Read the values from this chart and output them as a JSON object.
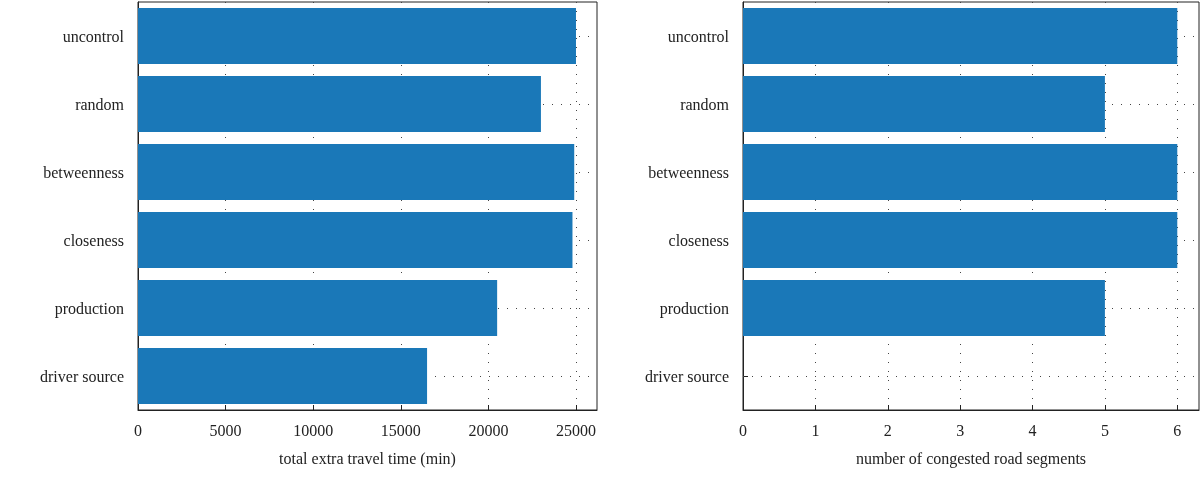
{
  "chart_data": [
    {
      "type": "bar",
      "orientation": "horizontal",
      "categories": [
        "uncontrol",
        "random",
        "betweenness",
        "closeness",
        "production",
        "driver source"
      ],
      "values": [
        25000,
        23000,
        24900,
        24800,
        20500,
        16500
      ],
      "color": "#1a78b8",
      "xlim": [
        0,
        26200
      ],
      "xticks": [
        0,
        5000,
        10000,
        15000,
        20000,
        25000
      ],
      "xlabel": "total extra travel time (min)",
      "grid": true
    },
    {
      "type": "bar",
      "orientation": "horizontal",
      "categories": [
        "uncontrol",
        "random",
        "betweenness",
        "closeness",
        "production",
        "driver source"
      ],
      "values": [
        6,
        5,
        6,
        6,
        5,
        0
      ],
      "color": "#1a78b8",
      "xlim": [
        0,
        6.3
      ],
      "xticks": [
        0,
        1,
        2,
        3,
        4,
        5,
        6
      ],
      "xlabel": "number of congested road segments",
      "grid": true
    }
  ]
}
